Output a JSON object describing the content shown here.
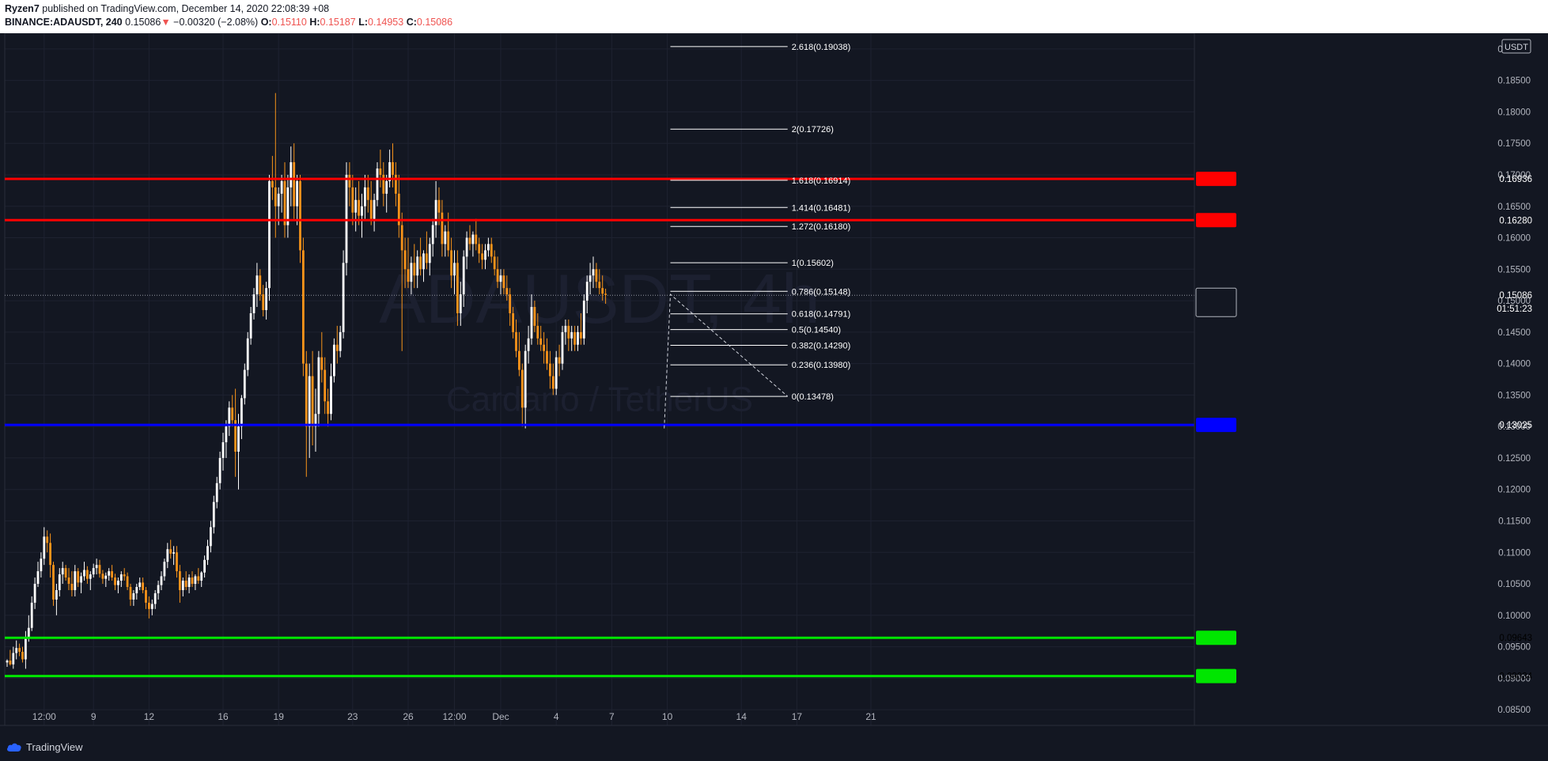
{
  "header": {
    "publisher": "Ryzen7",
    "published_text": "published on TradingView.com, December 14, 2020 22:08:39 +08",
    "symbol": "BINANCE:ADAUSDT, 240",
    "last": "0.15086",
    "change_arrow": "▼",
    "change": "−0.00320 (−2.08%)",
    "o_label": "O:",
    "o_value": "0.15110",
    "h_label": "H:",
    "h_value": "0.15187",
    "l_label": "L:",
    "l_value": "0.14953",
    "c_label": "C:",
    "c_value": "0.15086"
  },
  "colors": {
    "background": "#131722",
    "up_candle": "#ffffff",
    "down_candle": "#f7931a",
    "resistance": "#ff0000",
    "support_blue": "#0000ff",
    "support_green": "#00e600",
    "fib": "#ffffff"
  },
  "footer": {
    "brand": "TradingView"
  },
  "chart_data": {
    "type": "candlestick",
    "title": "ADAUSDT, 4h",
    "watermark_title": "ADAUSDT, 4h",
    "watermark_subtitle": "Cardano / TetherUS",
    "currency_label": "USDT",
    "ylim": [
      0.0825,
      0.1925
    ],
    "y_ticks": [
      "0.08500",
      "0.09000",
      "0.09500",
      "0.10000",
      "0.10500",
      "0.11000",
      "0.11500",
      "0.12000",
      "0.12500",
      "0.13000",
      "0.13500",
      "0.14000",
      "0.14500",
      "0.15000",
      "0.15500",
      "0.16000",
      "0.16500",
      "0.17000",
      "0.17500",
      "0.18000",
      "0.18500",
      "0.19000"
    ],
    "x_ticks": [
      {
        "label": "12:00",
        "bar": 12
      },
      {
        "label": "9",
        "bar": 28
      },
      {
        "label": "12",
        "bar": 46
      },
      {
        "label": "16",
        "bar": 70
      },
      {
        "label": "19",
        "bar": 88
      },
      {
        "label": "23",
        "bar": 112
      },
      {
        "label": "26",
        "bar": 130
      },
      {
        "label": "12:00",
        "bar": 145
      },
      {
        "label": "Dec",
        "bar": 160
      },
      {
        "label": "4",
        "bar": 178
      },
      {
        "label": "7",
        "bar": 196
      },
      {
        "label": "10",
        "bar": 214
      },
      {
        "label": "14",
        "bar": 238
      },
      {
        "label": "17",
        "bar": 256
      },
      {
        "label": "21",
        "bar": 280
      }
    ],
    "horizontal_lines": [
      {
        "price": 0.16936,
        "color": "#ff0000",
        "label": "0.16936"
      },
      {
        "price": 0.1628,
        "color": "#ff0000",
        "label": "0.16280"
      },
      {
        "price": 0.13025,
        "color": "#0000ff",
        "label": "0.13025"
      },
      {
        "price": 0.09643,
        "color": "#00e600",
        "label": "0.09643"
      },
      {
        "price": 0.09034,
        "color": "#00e600",
        "label": "0.09034"
      }
    ],
    "last_price": {
      "price": 0.15086,
      "label": "0.15086",
      "countdown": "01:51:23"
    },
    "fib_levels": [
      {
        "price": 0.19038,
        "label": "2.618(0.19038)"
      },
      {
        "price": 0.17726,
        "label": "2(0.17726)"
      },
      {
        "price": 0.16914,
        "label": "1.618(0.16914)"
      },
      {
        "price": 0.16481,
        "label": "1.414(0.16481)"
      },
      {
        "price": 0.1618,
        "label": "1.272(0.16180)"
      },
      {
        "price": 0.15602,
        "label": "1(0.15602)"
      },
      {
        "price": 0.15148,
        "label": "0.786(0.15148)"
      },
      {
        "price": 0.14791,
        "label": "0.618(0.14791)"
      },
      {
        "price": 0.1454,
        "label": "0.5(0.14540)"
      },
      {
        "price": 0.1429,
        "label": "0.382(0.14290)"
      },
      {
        "price": 0.1398,
        "label": "0.236(0.13980)"
      },
      {
        "price": 0.13478,
        "label": "0(0.13478)"
      }
    ],
    "fib_bar_range": [
      215,
      253
    ],
    "fib_trend": [
      [
        213,
        0.1297
      ],
      [
        215,
        0.151
      ],
      [
        253,
        0.1348
      ]
    ],
    "candles": [
      [
        0.0925,
        0.093,
        0.0918,
        0.0928
      ],
      [
        0.0928,
        0.0945,
        0.092,
        0.0922
      ],
      [
        0.0922,
        0.095,
        0.0915,
        0.094
      ],
      [
        0.094,
        0.096,
        0.093,
        0.0948
      ],
      [
        0.0948,
        0.0955,
        0.0935,
        0.0942
      ],
      [
        0.0942,
        0.095,
        0.0925,
        0.093
      ],
      [
        0.093,
        0.0975,
        0.0915,
        0.0965
      ],
      [
        0.0965,
        0.1,
        0.0958,
        0.098
      ],
      [
        0.098,
        0.103,
        0.0975,
        0.102
      ],
      [
        0.102,
        0.106,
        0.101,
        0.105
      ],
      [
        0.105,
        0.1085,
        0.1045,
        0.107
      ],
      [
        0.107,
        0.11,
        0.106,
        0.109
      ],
      [
        0.109,
        0.114,
        0.108,
        0.1125
      ],
      [
        0.1125,
        0.1135,
        0.11,
        0.1115
      ],
      [
        0.1115,
        0.113,
        0.106,
        0.108
      ],
      [
        0.108,
        0.1085,
        0.1015,
        0.1025
      ],
      [
        0.1025,
        0.105,
        0.1,
        0.104
      ],
      [
        0.104,
        0.1075,
        0.103,
        0.1065
      ],
      [
        0.1065,
        0.1085,
        0.105,
        0.1075
      ],
      [
        0.1075,
        0.108,
        0.1055,
        0.106
      ],
      [
        0.106,
        0.1075,
        0.104,
        0.105
      ],
      [
        0.105,
        0.107,
        0.103,
        0.104
      ],
      [
        0.104,
        0.108,
        0.103,
        0.107
      ],
      [
        0.107,
        0.1075,
        0.1045,
        0.1052
      ],
      [
        0.1052,
        0.1068,
        0.1035,
        0.1062
      ],
      [
        0.1062,
        0.1085,
        0.1055,
        0.1072
      ],
      [
        0.1072,
        0.1078,
        0.105,
        0.1058
      ],
      [
        0.1058,
        0.107,
        0.104,
        0.1065
      ],
      [
        0.1065,
        0.1082,
        0.106,
        0.1075
      ],
      [
        0.1075,
        0.109,
        0.1065,
        0.108
      ],
      [
        0.108,
        0.1088,
        0.106,
        0.1066
      ],
      [
        0.1066,
        0.1072,
        0.105,
        0.1058
      ],
      [
        0.1058,
        0.1068,
        0.1045,
        0.1063
      ],
      [
        0.1063,
        0.1075,
        0.1055,
        0.107
      ],
      [
        0.107,
        0.108,
        0.1055,
        0.106
      ],
      [
        0.106,
        0.1066,
        0.104,
        0.1048
      ],
      [
        0.1048,
        0.106,
        0.1035,
        0.1055
      ],
      [
        0.1055,
        0.107,
        0.1045,
        0.1065
      ],
      [
        0.1065,
        0.1075,
        0.1055,
        0.1062
      ],
      [
        0.1062,
        0.1068,
        0.104,
        0.1045
      ],
      [
        0.1045,
        0.105,
        0.1015,
        0.1025
      ],
      [
        0.1025,
        0.104,
        0.1015,
        0.1035
      ],
      [
        0.1035,
        0.105,
        0.1025,
        0.1045
      ],
      [
        0.1045,
        0.106,
        0.104,
        0.1052
      ],
      [
        0.1052,
        0.106,
        0.1035,
        0.104
      ],
      [
        0.104,
        0.1045,
        0.101,
        0.102
      ],
      [
        0.102,
        0.103,
        0.0995,
        0.101
      ],
      [
        0.101,
        0.1025,
        0.1,
        0.1018
      ],
      [
        0.1018,
        0.104,
        0.101,
        0.1035
      ],
      [
        0.1035,
        0.1055,
        0.1025,
        0.1048
      ],
      [
        0.1048,
        0.107,
        0.104,
        0.1062
      ],
      [
        0.1062,
        0.109,
        0.1055,
        0.1085
      ],
      [
        0.1085,
        0.1115,
        0.1075,
        0.1105
      ],
      [
        0.1105,
        0.112,
        0.109,
        0.1098
      ],
      [
        0.1098,
        0.111,
        0.108,
        0.11
      ],
      [
        0.11,
        0.111,
        0.106,
        0.107
      ],
      [
        0.107,
        0.108,
        0.102,
        0.104
      ],
      [
        0.104,
        0.106,
        0.103,
        0.1055
      ],
      [
        0.1055,
        0.107,
        0.104,
        0.1045
      ],
      [
        0.1045,
        0.1065,
        0.1035,
        0.106
      ],
      [
        0.106,
        0.107,
        0.1045,
        0.105
      ],
      [
        0.105,
        0.1065,
        0.104,
        0.1062
      ],
      [
        0.1062,
        0.1075,
        0.105,
        0.1055
      ],
      [
        0.1055,
        0.107,
        0.1045,
        0.1068
      ],
      [
        0.1068,
        0.1095,
        0.106,
        0.1088
      ],
      [
        0.1088,
        0.112,
        0.108,
        0.111
      ],
      [
        0.111,
        0.115,
        0.11,
        0.114
      ],
      [
        0.114,
        0.119,
        0.113,
        0.118
      ],
      [
        0.118,
        0.122,
        0.117,
        0.121
      ],
      [
        0.121,
        0.126,
        0.12,
        0.125
      ],
      [
        0.125,
        0.129,
        0.123,
        0.1275
      ],
      [
        0.1275,
        0.131,
        0.125,
        0.13
      ],
      [
        0.13,
        0.134,
        0.1285,
        0.133
      ],
      [
        0.133,
        0.135,
        0.13,
        0.131
      ],
      [
        0.131,
        0.136,
        0.122,
        0.126
      ],
      [
        0.126,
        0.132,
        0.12,
        0.13
      ],
      [
        0.13,
        0.135,
        0.128,
        0.1345
      ],
      [
        0.1345,
        0.14,
        0.1335,
        0.139
      ],
      [
        0.139,
        0.145,
        0.138,
        0.144
      ],
      [
        0.144,
        0.149,
        0.143,
        0.148
      ],
      [
        0.148,
        0.152,
        0.147,
        0.151
      ],
      [
        0.151,
        0.156,
        0.149,
        0.154
      ],
      [
        0.154,
        0.155,
        0.15,
        0.151
      ],
      [
        0.151,
        0.1525,
        0.1475,
        0.1485
      ],
      [
        0.1485,
        0.153,
        0.147,
        0.152
      ],
      [
        0.152,
        0.17,
        0.15,
        0.169
      ],
      [
        0.169,
        0.173,
        0.166,
        0.168
      ],
      [
        0.168,
        0.183,
        0.16,
        0.165
      ],
      [
        0.165,
        0.168,
        0.162,
        0.167
      ],
      [
        0.167,
        0.17,
        0.164,
        0.169
      ],
      [
        0.169,
        0.172,
        0.16,
        0.162
      ],
      [
        0.162,
        0.17,
        0.16,
        0.168
      ],
      [
        0.168,
        0.1745,
        0.165,
        0.172
      ],
      [
        0.172,
        0.175,
        0.163,
        0.165
      ],
      [
        0.165,
        0.17,
        0.162,
        0.169
      ],
      [
        0.169,
        0.17,
        0.156,
        0.158
      ],
      [
        0.158,
        0.16,
        0.138,
        0.14
      ],
      [
        0.14,
        0.142,
        0.122,
        0.13
      ],
      [
        0.13,
        0.14,
        0.125,
        0.138
      ],
      [
        0.138,
        0.142,
        0.127,
        0.13
      ],
      [
        0.13,
        0.136,
        0.126,
        0.132
      ],
      [
        0.132,
        0.142,
        0.13,
        0.141
      ],
      [
        0.141,
        0.145,
        0.137,
        0.139
      ],
      [
        0.139,
        0.141,
        0.132,
        0.134
      ],
      [
        0.134,
        0.136,
        0.13,
        0.132
      ],
      [
        0.132,
        0.14,
        0.131,
        0.138
      ],
      [
        0.138,
        0.144,
        0.137,
        0.143
      ],
      [
        0.143,
        0.146,
        0.14,
        0.142
      ],
      [
        0.142,
        0.146,
        0.141,
        0.145
      ],
      [
        0.145,
        0.158,
        0.144,
        0.156
      ],
      [
        0.156,
        0.172,
        0.154,
        0.17
      ],
      [
        0.17,
        0.172,
        0.165,
        0.168
      ],
      [
        0.168,
        0.17,
        0.162,
        0.164
      ],
      [
        0.164,
        0.168,
        0.161,
        0.166
      ],
      [
        0.166,
        0.169,
        0.162,
        0.1635
      ],
      [
        0.1635,
        0.167,
        0.16,
        0.165
      ],
      [
        0.165,
        0.17,
        0.163,
        0.168
      ],
      [
        0.168,
        0.17,
        0.164,
        0.166
      ],
      [
        0.166,
        0.169,
        0.162,
        0.163
      ],
      [
        0.163,
        0.167,
        0.161,
        0.166
      ],
      [
        0.166,
        0.172,
        0.165,
        0.171
      ],
      [
        0.171,
        0.174,
        0.168,
        0.17
      ],
      [
        0.17,
        0.172,
        0.165,
        0.167
      ],
      [
        0.167,
        0.17,
        0.164,
        0.169
      ],
      [
        0.169,
        0.174,
        0.168,
        0.172
      ],
      [
        0.172,
        0.175,
        0.168,
        0.17
      ],
      [
        0.17,
        0.172,
        0.165,
        0.167
      ],
      [
        0.167,
        0.17,
        0.16,
        0.162
      ],
      [
        0.162,
        0.164,
        0.142,
        0.158
      ],
      [
        0.158,
        0.16,
        0.152,
        0.155
      ],
      [
        0.155,
        0.16,
        0.152,
        0.153
      ],
      [
        0.153,
        0.157,
        0.151,
        0.156
      ],
      [
        0.156,
        0.159,
        0.152,
        0.154
      ],
      [
        0.154,
        0.158,
        0.152,
        0.157
      ],
      [
        0.157,
        0.16,
        0.154,
        0.155
      ],
      [
        0.155,
        0.158,
        0.153,
        0.1575
      ],
      [
        0.1575,
        0.161,
        0.155,
        0.156
      ],
      [
        0.156,
        0.16,
        0.154,
        0.159
      ],
      [
        0.159,
        0.163,
        0.157,
        0.162
      ],
      [
        0.162,
        0.169,
        0.16,
        0.166
      ],
      [
        0.166,
        0.168,
        0.162,
        0.164
      ],
      [
        0.164,
        0.166,
        0.157,
        0.159
      ],
      [
        0.159,
        0.162,
        0.157,
        0.161
      ],
      [
        0.161,
        0.164,
        0.157,
        0.158
      ],
      [
        0.158,
        0.16,
        0.152,
        0.154
      ],
      [
        0.154,
        0.158,
        0.151,
        0.156
      ],
      [
        0.156,
        0.158,
        0.146,
        0.148
      ],
      [
        0.148,
        0.153,
        0.146,
        0.151
      ],
      [
        0.151,
        0.158,
        0.149,
        0.157
      ],
      [
        0.157,
        0.161,
        0.155,
        0.16
      ],
      [
        0.16,
        0.162,
        0.158,
        0.159
      ],
      [
        0.159,
        0.161,
        0.157,
        0.1605
      ],
      [
        0.1605,
        0.163,
        0.158,
        0.159
      ],
      [
        0.159,
        0.16,
        0.156,
        0.1575
      ],
      [
        0.1575,
        0.159,
        0.155,
        0.1565
      ],
      [
        0.1565,
        0.159,
        0.155,
        0.158
      ],
      [
        0.158,
        0.16,
        0.157,
        0.159
      ],
      [
        0.159,
        0.16,
        0.156,
        0.157
      ],
      [
        0.157,
        0.158,
        0.154,
        0.155
      ],
      [
        0.155,
        0.157,
        0.152,
        0.153
      ],
      [
        0.153,
        0.155,
        0.151,
        0.154
      ],
      [
        0.154,
        0.155,
        0.151,
        0.152
      ],
      [
        0.152,
        0.154,
        0.15,
        0.151
      ],
      [
        0.151,
        0.152,
        0.146,
        0.148
      ],
      [
        0.148,
        0.149,
        0.144,
        0.145
      ],
      [
        0.145,
        0.147,
        0.141,
        0.142
      ],
      [
        0.142,
        0.145,
        0.138,
        0.139
      ],
      [
        0.139,
        0.14,
        0.13,
        0.133
      ],
      [
        0.133,
        0.143,
        0.1297,
        0.142
      ],
      [
        0.142,
        0.146,
        0.14,
        0.144
      ],
      [
        0.144,
        0.151,
        0.143,
        0.149
      ],
      [
        0.149,
        0.15,
        0.145,
        0.146
      ],
      [
        0.146,
        0.148,
        0.143,
        0.144
      ],
      [
        0.144,
        0.146,
        0.142,
        0.143
      ],
      [
        0.143,
        0.145,
        0.14,
        0.142
      ],
      [
        0.142,
        0.144,
        0.139,
        0.14
      ],
      [
        0.14,
        0.142,
        0.136,
        0.138
      ],
      [
        0.138,
        0.14,
        0.135,
        0.136
      ],
      [
        0.136,
        0.142,
        0.135,
        0.141
      ],
      [
        0.141,
        0.143,
        0.138,
        0.14
      ],
      [
        0.14,
        0.146,
        0.139,
        0.145
      ],
      [
        0.145,
        0.147,
        0.143,
        0.146
      ],
      [
        0.146,
        0.147,
        0.142,
        0.144
      ],
      [
        0.144,
        0.146,
        0.142,
        0.145
      ],
      [
        0.145,
        0.146,
        0.142,
        0.143
      ],
      [
        0.143,
        0.146,
        0.142,
        0.145
      ],
      [
        0.145,
        0.148,
        0.143,
        0.144
      ],
      [
        0.144,
        0.151,
        0.143,
        0.15
      ],
      [
        0.15,
        0.154,
        0.148,
        0.153
      ],
      [
        0.153,
        0.156,
        0.151,
        0.154
      ],
      [
        0.154,
        0.157,
        0.152,
        0.155
      ],
      [
        0.155,
        0.156,
        0.152,
        0.153
      ],
      [
        0.153,
        0.155,
        0.151,
        0.152
      ],
      [
        0.152,
        0.154,
        0.15,
        0.1511
      ],
      [
        0.1511,
        0.1519,
        0.1495,
        0.1509
      ]
    ]
  }
}
